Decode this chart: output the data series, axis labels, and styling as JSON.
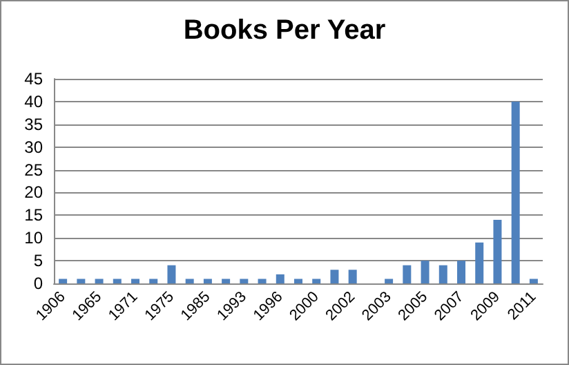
{
  "chart_data": {
    "type": "bar",
    "title": "Books Per Year",
    "categories": [
      "1906",
      null,
      "1965",
      null,
      "1971",
      null,
      "1975",
      null,
      "1985",
      null,
      "1993",
      null,
      "1996",
      null,
      "2000",
      null,
      "2002",
      null,
      "2003",
      null,
      "2005",
      null,
      "2007",
      null,
      "2009",
      null,
      "2011"
    ],
    "values": [
      1,
      1,
      1,
      1,
      1,
      1,
      4,
      1,
      1,
      1,
      1,
      1,
      2,
      1,
      1,
      3,
      3,
      0,
      1,
      4,
      5,
      4,
      5,
      9,
      14,
      40,
      1
    ],
    "color": "#4f81bd",
    "ylim": [
      0,
      45
    ],
    "yticks": [
      0,
      5,
      10,
      15,
      20,
      25,
      30,
      35,
      40,
      45
    ],
    "grid": "y"
  }
}
